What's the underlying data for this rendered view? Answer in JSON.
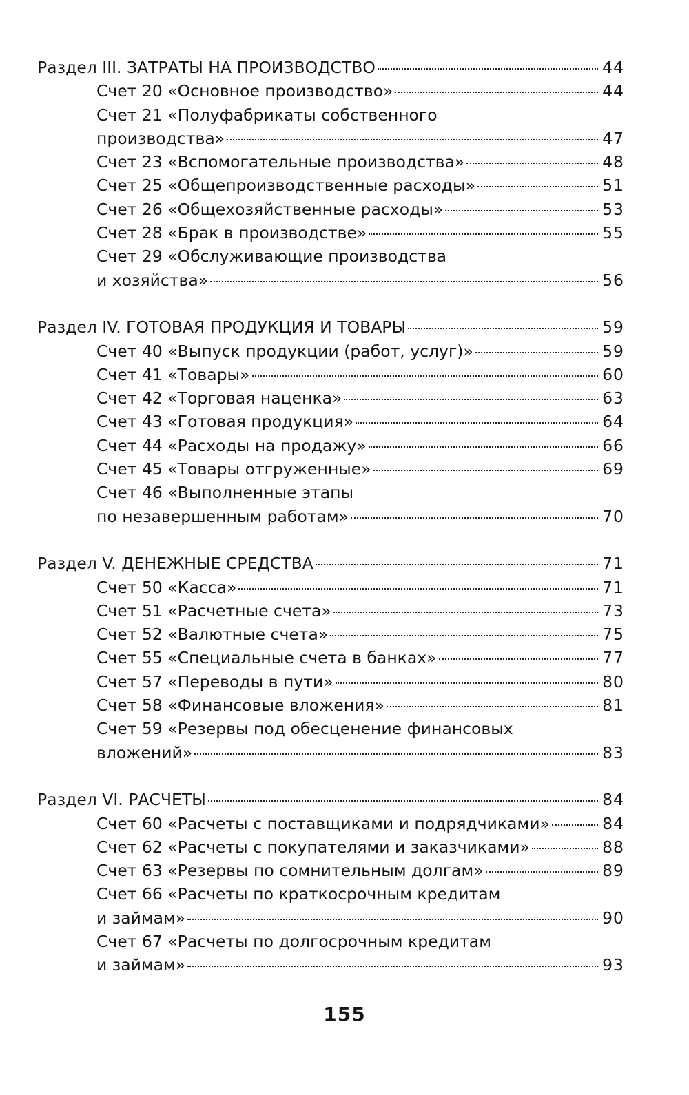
{
  "sections": [
    {
      "title": "Раздел III. ЗАТРАТЫ НА ПРОИЗВОДСТВО",
      "page": "44",
      "entries": [
        {
          "lines": [
            "Счет 20 «Основное производство»"
          ],
          "page": "44"
        },
        {
          "lines": [
            "Счет 21 «Полуфабрикаты собственного",
            "производства»"
          ],
          "page": "47"
        },
        {
          "lines": [
            "Счет 23 «Вспомогательные производства»"
          ],
          "page": "48"
        },
        {
          "lines": [
            "Счет 25 «Общепроизводственные расходы»"
          ],
          "page": "51"
        },
        {
          "lines": [
            "Счет 26 «Общехозяйственные расходы»"
          ],
          "page": "53"
        },
        {
          "lines": [
            "Счет 28 «Брак в производстве»"
          ],
          "page": "55"
        },
        {
          "lines": [
            "Счет 29 «Обслуживающие производства",
            "и хозяйства»"
          ],
          "page": "56"
        }
      ]
    },
    {
      "title": "Раздел IV. ГОТОВАЯ ПРОДУКЦИЯ И ТОВАРЫ",
      "page": "59",
      "entries": [
        {
          "lines": [
            "Счет 40 «Выпуск продукции (работ, услуг)»"
          ],
          "page": "59"
        },
        {
          "lines": [
            "Счет 41 «Товары»"
          ],
          "page": "60"
        },
        {
          "lines": [
            "Счет 42 «Торговая наценка»"
          ],
          "page": "63"
        },
        {
          "lines": [
            "Счет 43 «Готовая продукция»"
          ],
          "page": "64"
        },
        {
          "lines": [
            "Счет 44 «Расходы на продажу»"
          ],
          "page": "66"
        },
        {
          "lines": [
            "Счет 45 «Товары отгруженные»"
          ],
          "page": "69"
        },
        {
          "lines": [
            "Счет 46 «Выполненные этапы",
            "по незавершенным работам»"
          ],
          "page": "70"
        }
      ]
    },
    {
      "title": "Раздел V. ДЕНЕЖНЫЕ СРЕДСТВА",
      "page": "71",
      "entries": [
        {
          "lines": [
            "Счет 50 «Касса»"
          ],
          "page": "71"
        },
        {
          "lines": [
            "Счет 51 «Расчетные счета»"
          ],
          "page": "73"
        },
        {
          "lines": [
            "Счет 52 «Валютные счета»"
          ],
          "page": "75"
        },
        {
          "lines": [
            "Счет 55 «Специальные счета в банках»"
          ],
          "page": "77"
        },
        {
          "lines": [
            "Счет 57 «Переводы в пути»"
          ],
          "page": "80"
        },
        {
          "lines": [
            "Счет 58 «Финансовые вложения»"
          ],
          "page": "81"
        },
        {
          "lines": [
            "Счет 59 «Резервы под обесценение финансовых",
            "вложений»"
          ],
          "page": "83"
        }
      ]
    },
    {
      "title": "Раздел VI. РАСЧЕТЫ",
      "page": "84",
      "entries": [
        {
          "lines": [
            "Счет 60 «Расчеты с поставщиками и подрядчиками»"
          ],
          "page": "84"
        },
        {
          "lines": [
            "Счет 62 «Расчеты с покупателями и заказчиками»"
          ],
          "page": "88"
        },
        {
          "lines": [
            "Счет 63 «Резервы по сомнительным долгам»"
          ],
          "page": "89"
        },
        {
          "lines": [
            "Счет 66 «Расчеты по краткосрочным кредитам",
            "и займам»"
          ],
          "page": "90"
        },
        {
          "lines": [
            "Счет 67 «Расчеты по долгосрочным кредитам",
            "и займам»"
          ],
          "page": "93"
        }
      ]
    }
  ],
  "folio": "155"
}
